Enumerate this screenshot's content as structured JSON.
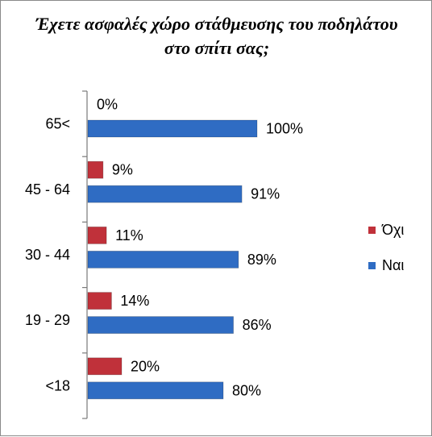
{
  "chart_data": {
    "type": "bar",
    "orientation": "horizontal",
    "title": "Έχετε ασφαλές χώρο στάθμευσης του ποδηλάτου στο σπίτι σας;",
    "categories": [
      "65<",
      "45 - 64",
      "30 - 44",
      "19 - 29",
      "<18"
    ],
    "series": [
      {
        "name": "Όχι",
        "color": "#c0313a",
        "values": [
          0,
          9,
          11,
          14,
          20
        ],
        "labels": [
          "0%",
          "9%",
          "11%",
          "14%",
          "20%"
        ]
      },
      {
        "name": "Ναι",
        "color": "#2f6cc3",
        "values": [
          100,
          91,
          89,
          86,
          80
        ],
        "labels": [
          "100%",
          "91%",
          "89%",
          "86%",
          "80%"
        ]
      }
    ],
    "xlim": [
      0,
      100
    ],
    "grid": false,
    "legend_position": "right"
  }
}
